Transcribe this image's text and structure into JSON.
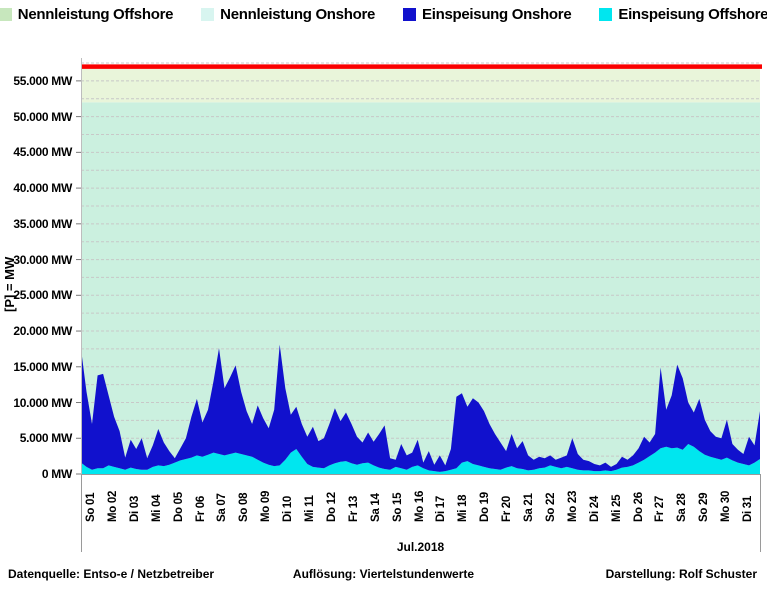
{
  "legend": {
    "items": [
      {
        "label": "Nennleistung Offshore",
        "color": "#c7e7bd",
        "icon": "swatch-light-green"
      },
      {
        "label": "Nennleistung Onshore",
        "color": "#d8f5f0",
        "icon": "swatch-pale-cyan"
      },
      {
        "label": "Einspeisung Onshore",
        "color": "#1111cd",
        "icon": "swatch-dark-blue"
      },
      {
        "label": "Einspeisung Offshore",
        "color": "#00e6ef",
        "icon": "swatch-cyan"
      }
    ]
  },
  "footer": {
    "left": "Datenquelle:  Entso-e  / Netzbetreiber",
    "center": "Auflösung: Viertelstundenwerte",
    "right": "Darstellung: Rolf Schuster"
  },
  "chart_data": {
    "type": "area",
    "title": "",
    "xlabel": "Jul.2018",
    "ylabel": "[P] = MW",
    "ylim": [
      0,
      58200
    ],
    "grid": true,
    "grid_step_mw": 2500,
    "grid_color": "#c8c8c8",
    "legend_position": "top",
    "yticks": [
      {
        "v": 0,
        "label": "0 MW"
      },
      {
        "v": 5000,
        "label": "5.000 MW"
      },
      {
        "v": 10000,
        "label": "10.000 MW"
      },
      {
        "v": 15000,
        "label": "15.000 MW"
      },
      {
        "v": 20000,
        "label": "20.000 MW"
      },
      {
        "v": 25000,
        "label": "25.000 MW"
      },
      {
        "v": 30000,
        "label": "30.000 MW"
      },
      {
        "v": 35000,
        "label": "35.000 MW"
      },
      {
        "v": 40000,
        "label": "40.000 MW"
      },
      {
        "v": 45000,
        "label": "45.000 MW"
      },
      {
        "v": 50000,
        "label": "50.000 MW"
      },
      {
        "v": 55000,
        "label": "55.000 MW"
      }
    ],
    "categories": [
      "So 01",
      "Mo 02",
      "Di 03",
      "Mi 04",
      "Do 05",
      "Fr 06",
      "Sa 07",
      "So 08",
      "Mo 09",
      "Di 10",
      "Mi 11",
      "Do 12",
      "Fr 13",
      "Sa 14",
      "So 15",
      "Mo 16",
      "Di 17",
      "Mi 18",
      "Do 19",
      "Fr 20",
      "Sa 21",
      "So 22",
      "Mo 23",
      "Di 24",
      "Mi 25",
      "Do 26",
      "Fr 27",
      "Sa 28",
      "So 29",
      "Mo 30",
      "Di 31"
    ],
    "samples_per_day": 4,
    "capacity": {
      "nennleistung_onshore_mw": 52000,
      "nennleistung_offshore_mw": 5000,
      "nennleistung_total_mw": 57000,
      "onshore_area_color": "#cbf0df",
      "offshore_area_color": "#e9f5da",
      "total_line_color": "#fb0000"
    },
    "series": [
      {
        "name": "Einspeisung Offshore",
        "color": "#00e6ef",
        "stack": true,
        "values_mw": [
          1600,
          1000,
          600,
          800,
          800,
          1200,
          1000,
          800,
          600,
          900,
          700,
          600,
          600,
          1000,
          1200,
          1100,
          1300,
          1600,
          1900,
          2100,
          2300,
          2600,
          2400,
          2700,
          3000,
          2800,
          2600,
          2800,
          3000,
          2800,
          2600,
          2400,
          2000,
          1600,
          1300,
          1100,
          1200,
          2000,
          3000,
          3500,
          2400,
          1400,
          1000,
          900,
          800,
          1200,
          1500,
          1700,
          1800,
          1500,
          1300,
          1500,
          1600,
          1200,
          900,
          700,
          600,
          1000,
          800,
          600,
          1000,
          1200,
          800,
          500,
          400,
          300,
          400,
          600,
          800,
          1600,
          1800,
          1400,
          1200,
          1000,
          800,
          700,
          600,
          900,
          1100,
          800,
          700,
          500,
          600,
          800,
          900,
          1200,
          1000,
          800,
          1000,
          800,
          600,
          500,
          500,
          400,
          400,
          500,
          400,
          600,
          900,
          1000,
          1200,
          1600,
          2000,
          2500,
          3000,
          3600,
          3800,
          3600,
          3700,
          3400,
          4200,
          3800,
          3200,
          2700,
          2400,
          2200,
          2000,
          2300,
          1900,
          1600,
          1400,
          1200,
          1600,
          2100
        ]
      },
      {
        "name": "Einspeisung Onshore",
        "color": "#1111cd",
        "stack": true,
        "values_mw": [
          15900,
          10500,
          6400,
          13000,
          13200,
          9800,
          7000,
          5200,
          1700,
          3900,
          2800,
          4400,
          1600,
          3000,
          5100,
          3300,
          1900,
          600,
          1700,
          2900,
          5700,
          7900,
          4800,
          6300,
          10000,
          14800,
          9400,
          10700,
          12200,
          8700,
          6200,
          4600,
          7600,
          6200,
          5100,
          7900,
          16900,
          10000,
          5300,
          5900,
          4600,
          3800,
          5600,
          3700,
          4200,
          5800,
          7700,
          5700,
          6800,
          5500,
          3900,
          2900,
          4200,
          3300,
          4700,
          6100,
          1600,
          1000,
          3400,
          2000,
          2000,
          3600,
          800,
          2700,
          900,
          2300,
          800,
          2900,
          10000,
          9700,
          7600,
          9200,
          8800,
          7800,
          6200,
          4900,
          3800,
          2300,
          4500,
          2800,
          3900,
          2100,
          1400,
          1600,
          1300,
          1400,
          1000,
          1500,
          1600,
          4200,
          2200,
          1500,
          1300,
          1000,
          800,
          1100,
          600,
          800,
          1500,
          1000,
          1400,
          2000,
          3200,
          1900,
          2600,
          11300,
          5200,
          7400,
          11600,
          10000,
          5800,
          4800,
          7300,
          4900,
          3600,
          3000,
          3000,
          5300,
          2300,
          1800,
          1400,
          4000,
          2400,
          6700
        ]
      }
    ]
  }
}
